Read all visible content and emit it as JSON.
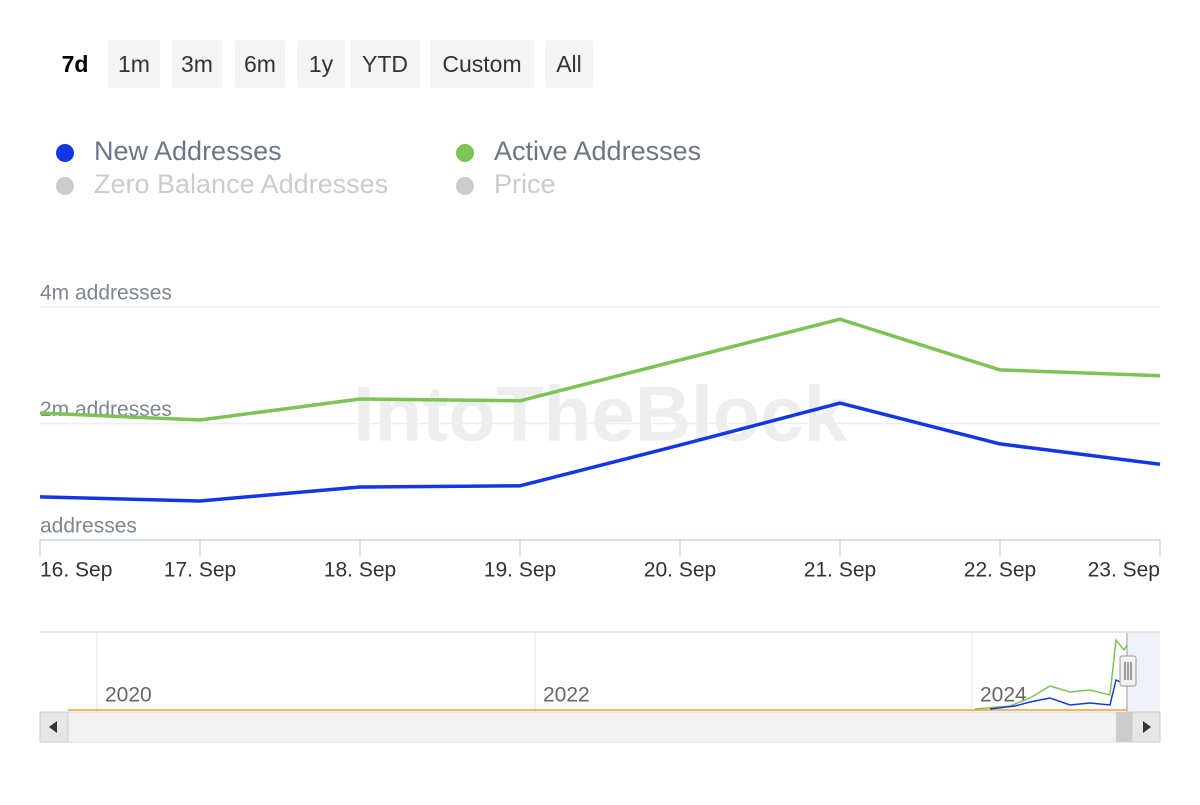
{
  "chart_data": {
    "type": "line",
    "range_buttons": [
      "7d",
      "1m",
      "3m",
      "6m",
      "1y",
      "YTD",
      "Custom",
      "All"
    ],
    "selected_range": "7d",
    "watermark": "IntoTheBlock",
    "categories": [
      "16. Sep",
      "17. Sep",
      "18. Sep",
      "19. Sep",
      "20. Sep",
      "21. Sep",
      "22. Sep",
      "23. Sep"
    ],
    "series": [
      {
        "name": "New Addresses",
        "color": "#1437e6",
        "values": [
          740000,
          670000,
          910000,
          930000,
          1630000,
          2350000,
          1650000,
          1300000
        ]
      },
      {
        "name": "Active Addresses",
        "color": "#7cc456",
        "values": [
          2180000,
          2060000,
          2420000,
          2390000,
          3090000,
          3790000,
          2920000,
          2820000
        ]
      }
    ],
    "hidden_series": [
      "Zero Balance Addresses",
      "Price"
    ],
    "ylim": [
      0,
      4000000
    ],
    "yticks": [
      {
        "value": 0,
        "label": "addresses"
      },
      {
        "value": 2000000,
        "label": "2m addresses"
      },
      {
        "value": 4000000,
        "label": "4m addresses"
      }
    ],
    "grid": true,
    "navigator_labels": [
      "2020",
      "2022",
      "2024"
    ]
  }
}
